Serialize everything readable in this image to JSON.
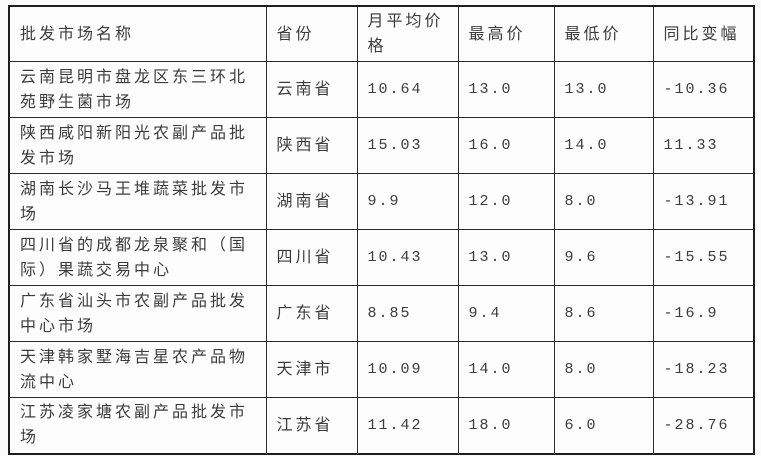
{
  "style": {
    "border_color": "#1e1e1e",
    "grid_color": "#2b2b2b",
    "text_color": "#3c3c3c",
    "background": "#fdfdfd"
  },
  "table": {
    "columns": [
      {
        "label": "批发市场名称"
      },
      {
        "label": "省份"
      },
      {
        "label": "月平均价格"
      },
      {
        "label": "最高价"
      },
      {
        "label": "最低价"
      },
      {
        "label": "同比变幅"
      }
    ],
    "rows": [
      [
        "云南昆明市盘龙区东三环北苑野生菌市场",
        "云南省",
        "10.64",
        "13.0",
        "13.0",
        "-10.36"
      ],
      [
        "陕西咸阳新阳光农副产品批发市场",
        "陕西省",
        "15.03",
        "16.0",
        "14.0",
        "11.33"
      ],
      [
        "湖南长沙马王堆蔬菜批发市场",
        "湖南省",
        "9.9",
        "12.0",
        "8.0",
        "-13.91"
      ],
      [
        "四川省的成都龙泉聚和（国际）果蔬交易中心",
        "四川省",
        "10.43",
        "13.0",
        "9.6",
        "-15.55"
      ],
      [
        "广东省汕头市农副产品批发中心市场",
        "广东省",
        "8.85",
        "9.4",
        "8.6",
        "-16.9"
      ],
      [
        "天津韩家墅海吉星农产品物流中心",
        "天津市",
        "10.09",
        "14.0",
        "8.0",
        "-18.23"
      ],
      [
        "江苏凌家塘农副产品批发市场",
        "江苏省",
        "11.42",
        "18.0",
        "6.0",
        "-28.76"
      ]
    ]
  },
  "chart_data": {
    "type": "table",
    "title": "",
    "columns": [
      "批发市场名称",
      "省份",
      "月平均价格",
      "最高价",
      "最低价",
      "同比变幅"
    ],
    "rows": [
      [
        "云南昆明市盘龙区东三环北苑野生菌市场",
        "云南省",
        10.64,
        13.0,
        13.0,
        -10.36
      ],
      [
        "陕西咸阳新阳光农副产品批发市场",
        "陕西省",
        15.03,
        16.0,
        14.0,
        11.33
      ],
      [
        "湖南长沙马王堆蔬菜批发市场",
        "湖南省",
        9.9,
        12.0,
        8.0,
        -13.91
      ],
      [
        "四川省的成都龙泉聚和（国际）果蔬交易中心",
        "四川省",
        10.43,
        13.0,
        9.6,
        -15.55
      ],
      [
        "广东省汕头市农副产品批发中心市场",
        "广东省",
        8.85,
        9.4,
        8.6,
        -16.9
      ],
      [
        "天津韩家墅海吉星农产品物流中心",
        "天津市",
        10.09,
        14.0,
        8.0,
        -18.23
      ],
      [
        "江苏凌家塘农副产品批发市场",
        "江苏省",
        11.42,
        18.0,
        6.0,
        -28.76
      ]
    ]
  }
}
